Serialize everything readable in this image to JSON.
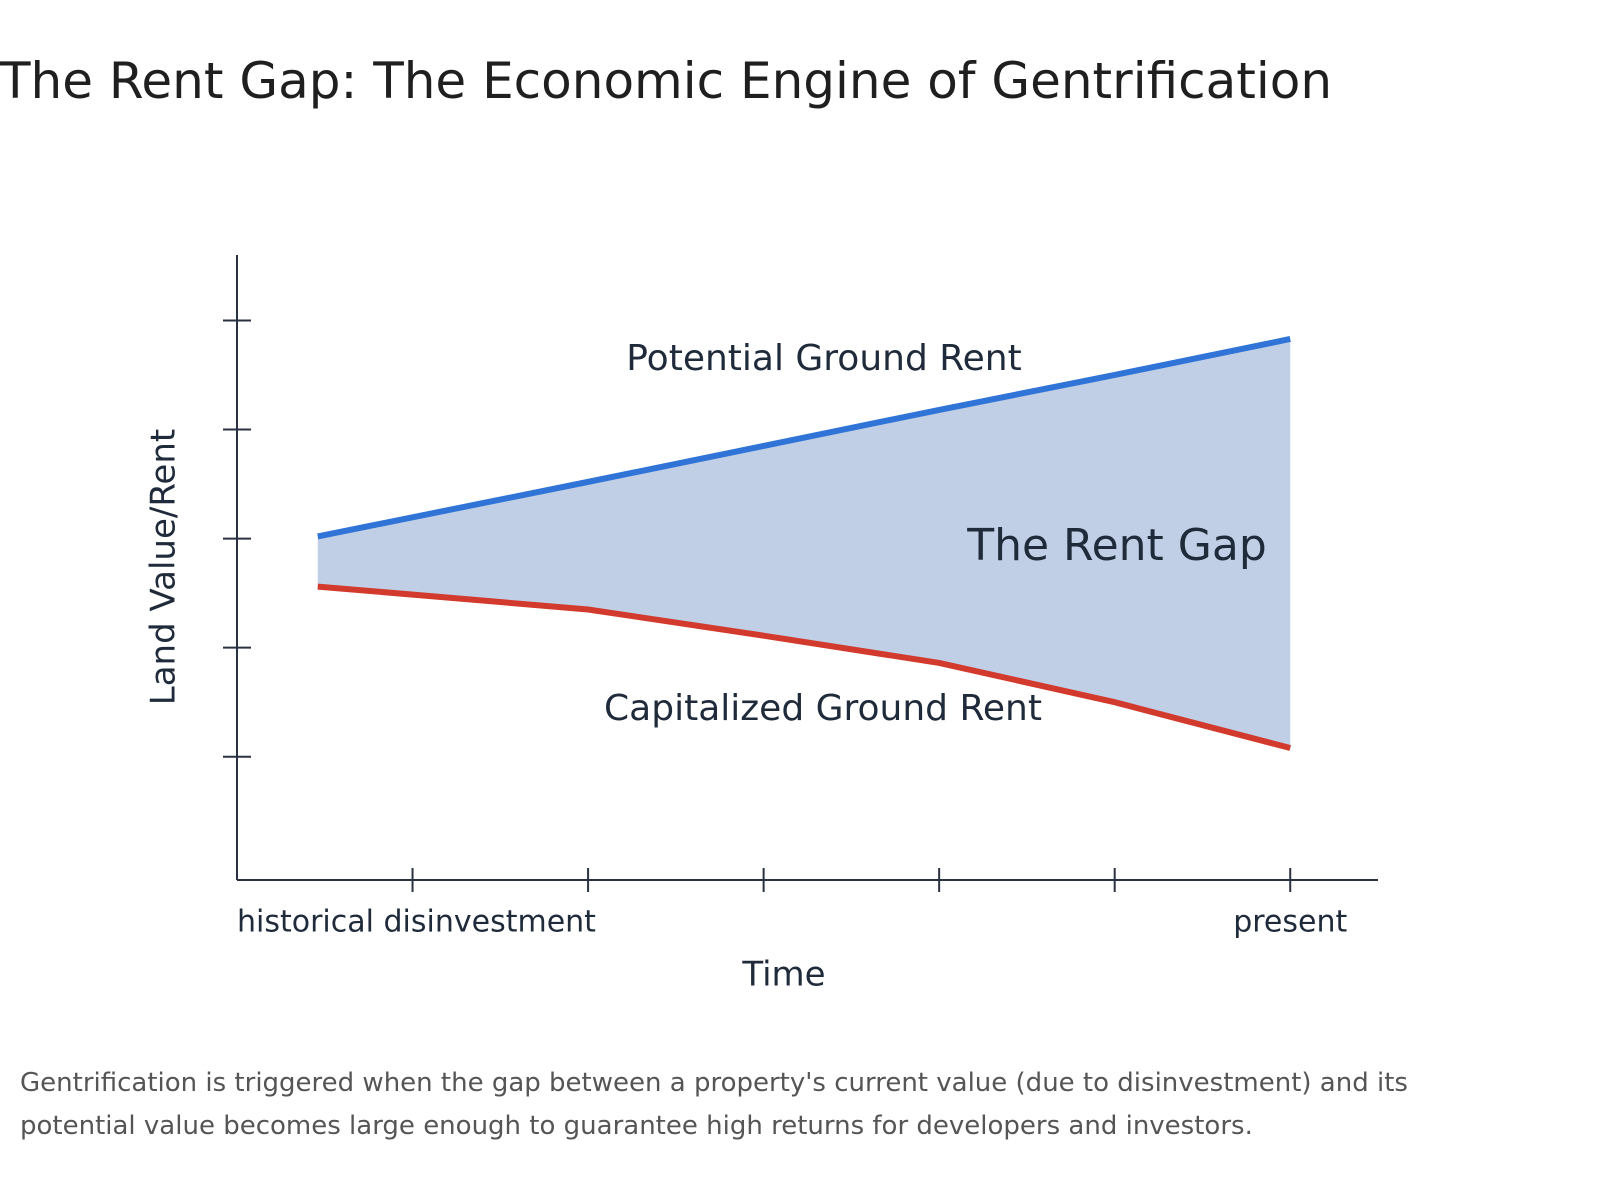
{
  "title": "The Rent Gap: The Economic Engine of Gentrification",
  "chart_data": {
    "type": "line",
    "xlabel": "Time",
    "ylabel": "Land Value/Rent",
    "xlim": [
      0,
      6.5
    ],
    "ylim": [
      -0.13,
      5.6
    ],
    "xticks": [
      {
        "value": 1,
        "label": "historical disinvestment"
      },
      {
        "value": 2,
        "label": null
      },
      {
        "value": 3,
        "label": null
      },
      {
        "value": 4,
        "label": null
      },
      {
        "value": 5,
        "label": null
      },
      {
        "value": 6,
        "label": "present"
      }
    ],
    "yticks": [
      1,
      2,
      3,
      4,
      5
    ],
    "x": [
      0.46,
      2,
      3,
      4,
      5,
      6
    ],
    "series": [
      {
        "name": "Potential Ground Rent",
        "color": "#2f74d6",
        "values": [
          3.02,
          3.52,
          3.85,
          4.18,
          4.5,
          4.83
        ]
      },
      {
        "name": "Capitalized Ground Rent",
        "color": "#d33a2e",
        "values": [
          2.56,
          2.35,
          2.11,
          1.86,
          1.5,
          1.08
        ]
      }
    ],
    "fill_between": {
      "label": "The Rent Gap",
      "color": "#c0cfe5"
    }
  },
  "caption": "Gentrification is triggered when the gap between a property's current value (due to disinvestment) and its potential value becomes large enough to guarantee high returns for developers and investors."
}
